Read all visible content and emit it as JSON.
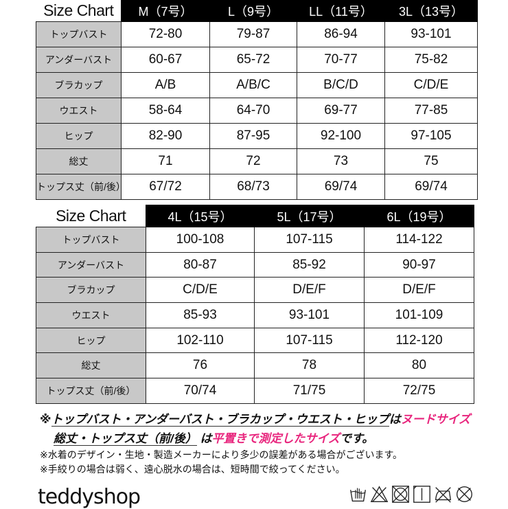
{
  "table1": {
    "title": "Size Chart",
    "sizes": [
      "M（7号）",
      "L（9号）",
      "LL（11号）",
      "3L（13号）"
    ],
    "rows": [
      {
        "label": "トップバスト",
        "values": [
          "72-80",
          "79-87",
          "86-94",
          "93-101"
        ]
      },
      {
        "label": "アンダーバスト",
        "values": [
          "60-67",
          "65-72",
          "70-77",
          "75-82"
        ]
      },
      {
        "label": "ブラカップ",
        "values": [
          "A/B",
          "A/B/C",
          "B/C/D",
          "C/D/E"
        ]
      },
      {
        "label": "ウエスト",
        "values": [
          "58-64",
          "64-70",
          "69-77",
          "77-85"
        ]
      },
      {
        "label": "ヒップ",
        "values": [
          "82-90",
          "87-95",
          "92-100",
          "97-105"
        ]
      },
      {
        "label": "総丈",
        "values": [
          "71",
          "72",
          "73",
          "75"
        ]
      },
      {
        "label": "トップス丈（前/後）",
        "values": [
          "67/72",
          "68/73",
          "69/74",
          "69/74"
        ]
      }
    ]
  },
  "table2": {
    "title": "Size Chart",
    "sizes": [
      "4L（15号）",
      "5L（17号）",
      "6L（19号）"
    ],
    "rows": [
      {
        "label": "トップバスト",
        "values": [
          "100-108",
          "107-115",
          "114-122"
        ]
      },
      {
        "label": "アンダーバスト",
        "values": [
          "80-87",
          "85-92",
          "90-97"
        ]
      },
      {
        "label": "ブラカップ",
        "values": [
          "C/D/E",
          "D/E/F",
          "D/E/F"
        ]
      },
      {
        "label": "ウエスト",
        "values": [
          "85-93",
          "93-101",
          "101-109"
        ]
      },
      {
        "label": "ヒップ",
        "values": [
          "102-110",
          "107-115",
          "112-120"
        ]
      },
      {
        "label": "総丈",
        "values": [
          "76",
          "78",
          "80"
        ]
      },
      {
        "label": "トップス丈（前/後）",
        "values": [
          "70/74",
          "71/75",
          "72/75"
        ]
      }
    ]
  },
  "notes": {
    "line1_prefix": "※",
    "line1_items": "トップバスト・アンダーバスト・ブラカップ・ウエスト・ヒップ",
    "line1_particle": "は",
    "line1_highlight": "ヌードサイズ",
    "line2_items": "総丈・トップス丈（前/後）",
    "line2_particle": " は",
    "line2_highlight": "平置きで測定したサイズ",
    "line2_suffix": "です。",
    "line3": "※水着のデザイン・生地・製造メーカーにより多少の誤差がある場合がございます。",
    "line4": "※手絞りの場合は弱く、遠心脱水の場合は、短時間で絞ってください。"
  },
  "brand": {
    "logo": "teddyshop"
  },
  "colors": {
    "highlight": "#e8257d",
    "header_bg": "#000000",
    "label_bg": "#c8c8c8"
  },
  "care_icons": [
    "hand-wash-icon",
    "no-bleach-icon",
    "no-tumble-dry-icon",
    "line-dry-icon",
    "no-iron-icon",
    "no-dry-clean-icon"
  ]
}
